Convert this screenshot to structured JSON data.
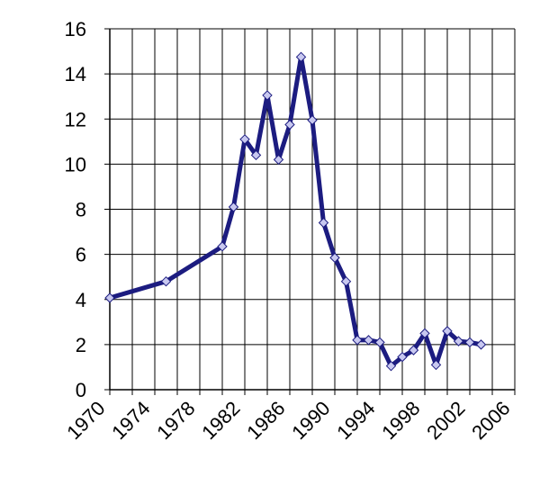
{
  "chart_data": {
    "type": "line",
    "x": [
      1970,
      1975,
      1980,
      1981,
      1982,
      1983,
      1984,
      1985,
      1986,
      1987,
      1988,
      1989,
      1990,
      1991,
      1992,
      1993,
      1994,
      1995,
      1996,
      1997,
      1998,
      1999,
      2000,
      2001,
      2002,
      2003
    ],
    "series": [
      {
        "color": "#1c1c80",
        "marker_color": "#c8c8f0",
        "values": [
          4.07,
          4.8,
          6.35,
          8.1,
          11.1,
          10.4,
          13.05,
          10.2,
          11.75,
          14.75,
          11.95,
          7.4,
          5.85,
          4.8,
          2.2,
          2.2,
          2.1,
          1.05,
          1.45,
          1.75,
          2.5,
          1.1,
          2.6,
          2.15,
          2.1,
          2.0
        ]
      }
    ],
    "xlim": [
      1970,
      2006
    ],
    "xticks": [
      1970,
      1974,
      1978,
      1982,
      1986,
      1990,
      1994,
      1998,
      2002,
      2006
    ],
    "ylim": [
      0,
      16
    ],
    "yticks": [
      0,
      2,
      4,
      6,
      8,
      10,
      12,
      14,
      16
    ],
    "grid": true
  }
}
